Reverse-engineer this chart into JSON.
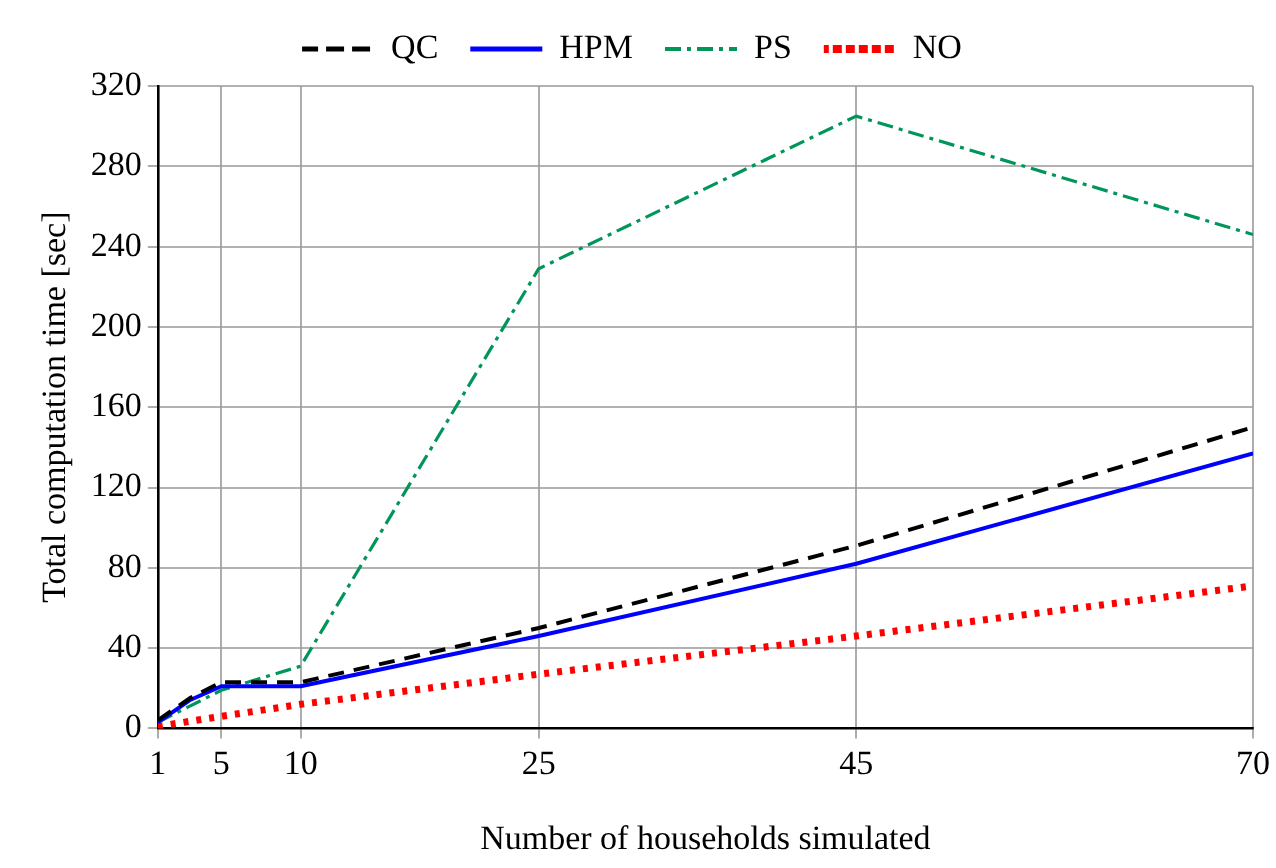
{
  "chart_data": {
    "type": "line",
    "xlabel": "Number of households simulated",
    "ylabel": "Total computation time [sec]",
    "xlim": [
      1,
      70
    ],
    "xticks": [
      1,
      5,
      10,
      25,
      45,
      70
    ],
    "ylim": [
      0,
      320
    ],
    "yticks": [
      0,
      40,
      80,
      120,
      160,
      200,
      240,
      280,
      320
    ],
    "grid": true,
    "legend": "top",
    "marker": "none",
    "series": [
      {
        "name": "QC",
        "color": "#000000",
        "line_style": "dashed",
        "x": [
          1,
          3,
          5,
          10,
          25,
          45,
          70
        ],
        "values": [
          4,
          15,
          23,
          23,
          50,
          91,
          150
        ]
      },
      {
        "name": "HPM",
        "color": "#0000ff",
        "line_style": "solid",
        "x": [
          1,
          3,
          5,
          10,
          25,
          45,
          70
        ],
        "values": [
          3,
          14,
          21,
          21,
          46,
          82,
          137
        ]
      },
      {
        "name": "PS",
        "color": "#00965a",
        "line_style": "dashdot",
        "x": [
          1,
          5,
          10,
          25,
          45,
          70
        ],
        "values": [
          3,
          19,
          31,
          229,
          305,
          246
        ]
      },
      {
        "name": "NO",
        "color": "#ff0000",
        "line_style": "dotted",
        "x": [
          1,
          5,
          10,
          25,
          45,
          70
        ],
        "values": [
          1,
          6,
          12,
          27,
          46,
          71
        ]
      }
    ]
  }
}
